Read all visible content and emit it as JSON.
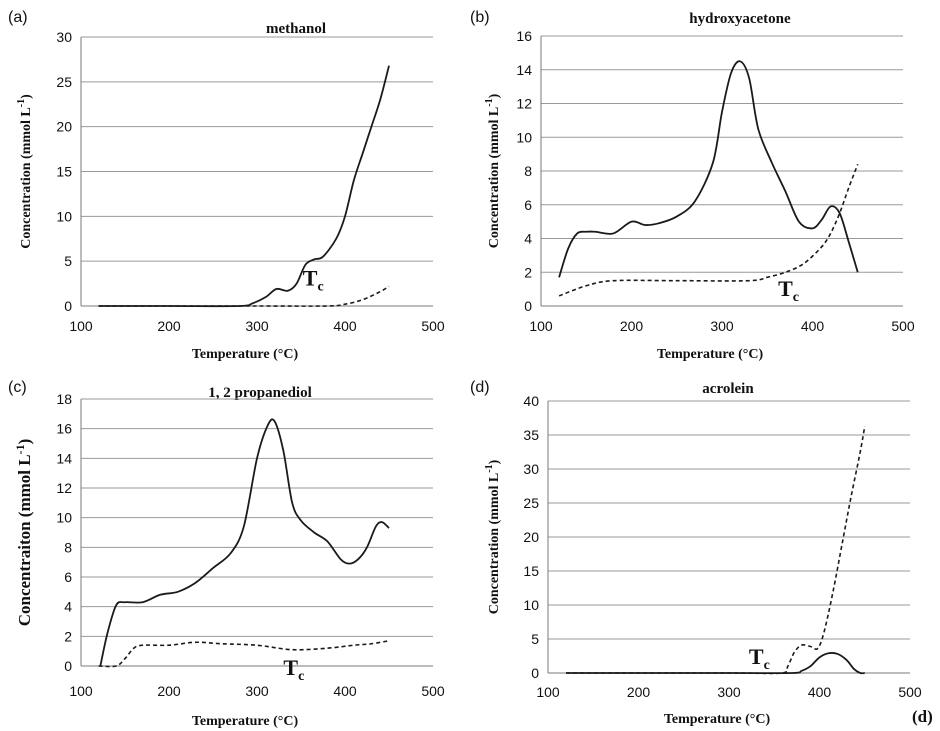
{
  "figure_label": "(d)",
  "chart_data": [
    {
      "panel": "(a)",
      "type": "line",
      "title": "methanol",
      "xlabel": "Temperature (°C)",
      "ylabel_main": "Concentration (mmol L",
      "ylabel_sup": "-1",
      "ylabel_close": ")",
      "xlim": [
        100,
        500
      ],
      "ylim": [
        0,
        30
      ],
      "xticks": [
        "100",
        "200",
        "300",
        "400",
        "500"
      ],
      "yticks": [
        "0",
        "5",
        "10",
        "15",
        "20",
        "25",
        "30"
      ],
      "grid": true,
      "annotation": {
        "text": "T",
        "sub": "c",
        "x": 352,
        "y": 2.3
      },
      "series": [
        {
          "style": "solid",
          "points": [
            [
              120,
              0
            ],
            [
              200,
              0
            ],
            [
              280,
              0
            ],
            [
              295,
              0.3
            ],
            [
              310,
              1.0
            ],
            [
              322,
              1.9
            ],
            [
              335,
              1.7
            ],
            [
              345,
              2.5
            ],
            [
              355,
              4.6
            ],
            [
              365,
              5.2
            ],
            [
              375,
              5.5
            ],
            [
              390,
              7.5
            ],
            [
              400,
              10
            ],
            [
              410,
              14
            ],
            [
              420,
              17
            ],
            [
              430,
              20
            ],
            [
              440,
              23
            ],
            [
              450,
              26.8
            ]
          ]
        },
        {
          "style": "dashed",
          "points": [
            [
              120,
              0
            ],
            [
              200,
              0
            ],
            [
              300,
              0
            ],
            [
              380,
              0
            ],
            [
              400,
              0.2
            ],
            [
              420,
              0.7
            ],
            [
              440,
              1.6
            ],
            [
              450,
              2.2
            ]
          ]
        }
      ]
    },
    {
      "panel": "(b)",
      "type": "line",
      "title": "hydroxyacetone",
      "xlabel": "Temperature (°C)",
      "ylabel_main": "Concentration (mmol L",
      "ylabel_sup": "-1",
      "ylabel_close": ")",
      "xlim": [
        100,
        500
      ],
      "ylim": [
        0,
        16
      ],
      "xticks": [
        "100",
        "200",
        "300",
        "400",
        "500"
      ],
      "yticks": [
        "0",
        "2",
        "4",
        "6",
        "8",
        "10",
        "12",
        "14",
        "16"
      ],
      "grid": true,
      "annotation": {
        "text": "T",
        "sub": "c",
        "x": 362,
        "y": 0.6
      },
      "series": [
        {
          "style": "solid",
          "points": [
            [
              120,
              1.7
            ],
            [
              130,
              3.4
            ],
            [
              140,
              4.3
            ],
            [
              150,
              4.4
            ],
            [
              160,
              4.4
            ],
            [
              180,
              4.3
            ],
            [
              200,
              5.0
            ],
            [
              215,
              4.8
            ],
            [
              230,
              4.9
            ],
            [
              250,
              5.3
            ],
            [
              270,
              6.2
            ],
            [
              290,
              8.5
            ],
            [
              300,
              11.5
            ],
            [
              310,
              13.8
            ],
            [
              320,
              14.5
            ],
            [
              330,
              13.5
            ],
            [
              340,
              10.5
            ],
            [
              355,
              8.5
            ],
            [
              370,
              6.8
            ],
            [
              385,
              5.0
            ],
            [
              400,
              4.6
            ],
            [
              410,
              5.1
            ],
            [
              420,
              5.9
            ],
            [
              430,
              5.5
            ],
            [
              440,
              3.8
            ],
            [
              450,
              2.0
            ]
          ]
        },
        {
          "style": "dashed",
          "points": [
            [
              120,
              0.6
            ],
            [
              150,
              1.2
            ],
            [
              180,
              1.5
            ],
            [
              250,
              1.5
            ],
            [
              330,
              1.5
            ],
            [
              350,
              1.7
            ],
            [
              370,
              2.0
            ],
            [
              390,
              2.5
            ],
            [
              410,
              3.5
            ],
            [
              420,
              4.3
            ],
            [
              430,
              5.5
            ],
            [
              440,
              7.0
            ],
            [
              450,
              8.4
            ]
          ]
        }
      ]
    },
    {
      "panel": "(c)",
      "type": "line",
      "title": "1, 2 propanediol",
      "xlabel": "Temperature (°C)",
      "ylabel_main": "Concentraiton (mmol L",
      "ylabel_sup": "-1",
      "ylabel_close": ")",
      "xlim": [
        100,
        500
      ],
      "ylim": [
        0,
        18
      ],
      "xticks": [
        "100",
        "200",
        "300",
        "400",
        "500"
      ],
      "yticks": [
        "0",
        "2",
        "4",
        "6",
        "8",
        "10",
        "12",
        "14",
        "16",
        "18"
      ],
      "grid": true,
      "annotation": {
        "text": "T",
        "sub": "c",
        "x": 330,
        "y": -0.6
      },
      "series": [
        {
          "style": "solid",
          "points": [
            [
              122,
              0
            ],
            [
              130,
              2.2
            ],
            [
              140,
              4.1
            ],
            [
              150,
              4.3
            ],
            [
              170,
              4.3
            ],
            [
              190,
              4.8
            ],
            [
              210,
              5.0
            ],
            [
              230,
              5.6
            ],
            [
              250,
              6.6
            ],
            [
              270,
              7.6
            ],
            [
              285,
              9.4
            ],
            [
              300,
              14.0
            ],
            [
              312,
              16.2
            ],
            [
              320,
              16.5
            ],
            [
              330,
              14.5
            ],
            [
              340,
              11.0
            ],
            [
              350,
              9.8
            ],
            [
              365,
              9.0
            ],
            [
              380,
              8.4
            ],
            [
              395,
              7.2
            ],
            [
              405,
              6.9
            ],
            [
              415,
              7.2
            ],
            [
              425,
              8.0
            ],
            [
              435,
              9.4
            ],
            [
              442,
              9.7
            ],
            [
              450,
              9.3
            ]
          ]
        },
        {
          "style": "dashed",
          "points": [
            [
              120,
              0
            ],
            [
              140,
              0
            ],
            [
              150,
              0.5
            ],
            [
              160,
              1.2
            ],
            [
              170,
              1.4
            ],
            [
              200,
              1.4
            ],
            [
              230,
              1.6
            ],
            [
              260,
              1.5
            ],
            [
              300,
              1.4
            ],
            [
              340,
              1.1
            ],
            [
              380,
              1.2
            ],
            [
              410,
              1.4
            ],
            [
              430,
              1.5
            ],
            [
              450,
              1.7
            ]
          ]
        }
      ]
    },
    {
      "panel": "(d)",
      "type": "line",
      "title": "acrolein",
      "xlabel": "Temperature (°C)",
      "ylabel_main": "Concentration (mmol L",
      "ylabel_sup": "-1",
      "ylabel_close": ")",
      "xlim": [
        100,
        500
      ],
      "ylim": [
        0,
        40
      ],
      "xticks": [
        "100",
        "200",
        "300",
        "400",
        "500"
      ],
      "yticks": [
        "0",
        "5",
        "10",
        "15",
        "20",
        "25",
        "30",
        "35",
        "40"
      ],
      "grid": true,
      "annotation": {
        "text": "T",
        "sub": "c",
        "x": 322,
        "y": 1.3
      },
      "series": [
        {
          "style": "solid",
          "points": [
            [
              120,
              0
            ],
            [
              300,
              0
            ],
            [
              370,
              0
            ],
            [
              380,
              0.3
            ],
            [
              390,
              1.0
            ],
            [
              400,
              2.3
            ],
            [
              410,
              2.9
            ],
            [
              420,
              2.8
            ],
            [
              430,
              1.9
            ],
            [
              438,
              0.6
            ],
            [
              445,
              0
            ],
            [
              450,
              0
            ]
          ]
        },
        {
          "style": "dashed",
          "points": [
            [
              120,
              0
            ],
            [
              300,
              0
            ],
            [
              358,
              0
            ],
            [
              365,
              1.0
            ],
            [
              372,
              3.0
            ],
            [
              380,
              4.1
            ],
            [
              390,
              3.9
            ],
            [
              398,
              3.6
            ],
            [
              405,
              6.0
            ],
            [
              415,
              12.0
            ],
            [
              425,
              19.0
            ],
            [
              435,
              26.0
            ],
            [
              445,
              32.5
            ],
            [
              450,
              36.3
            ]
          ]
        }
      ]
    }
  ]
}
